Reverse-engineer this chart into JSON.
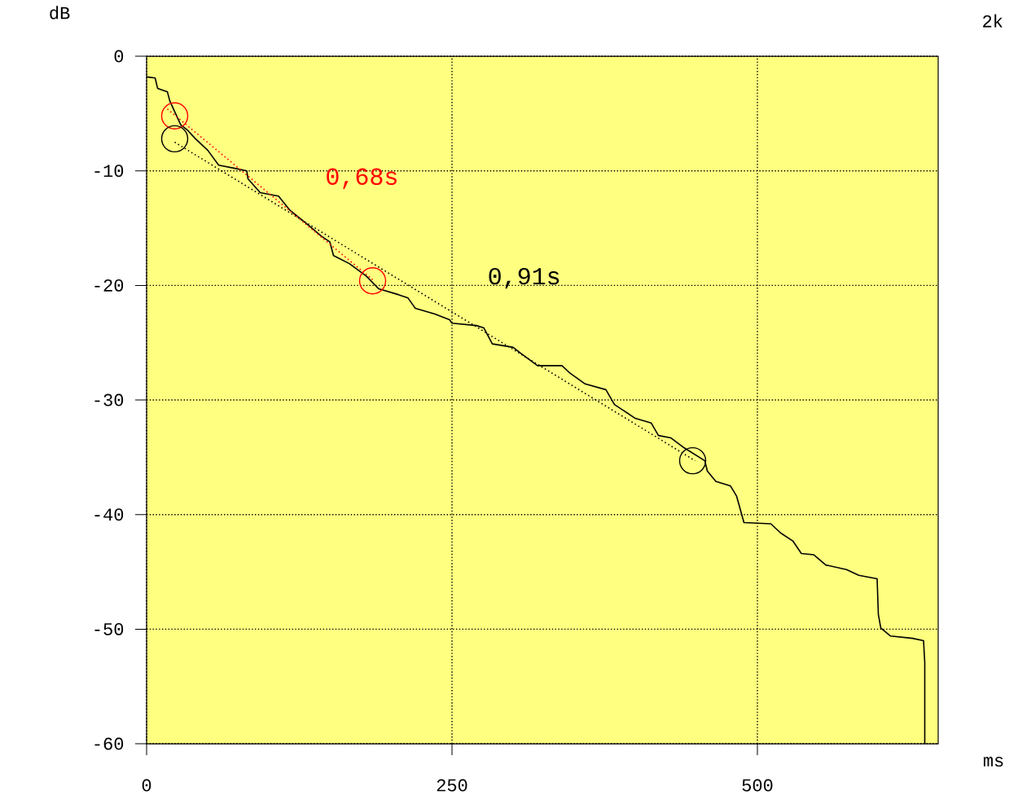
{
  "chart_data": {
    "type": "line",
    "xlabel": "ms",
    "ylabel": "dB",
    "xlim": [
      0,
      648
    ],
    "ylim": [
      -60,
      0
    ],
    "xticks": [
      0,
      250,
      500
    ],
    "yticks": [
      0,
      -10,
      -20,
      -30,
      -40,
      -50,
      -60
    ],
    "grid": true,
    "series": [
      {
        "color": "#000000",
        "line_style": "solid",
        "marker": "none",
        "x": [
          0,
          7,
          9,
          17,
          19,
          25,
          28,
          33,
          40,
          50,
          59,
          73,
          82,
          83,
          93,
          108,
          117,
          133,
          143,
          150,
          153,
          166,
          180,
          190,
          206,
          214,
          220,
          236,
          248,
          250,
          270,
          276,
          283,
          300,
          306,
          320,
          340,
          346,
          359,
          376,
          383,
          393,
          400,
          413,
          419,
          429,
          439,
          457,
          459,
          466,
          478,
          483,
          489,
          511,
          519,
          529,
          536,
          546,
          556,
          573,
          583,
          598,
          599,
          601,
          609,
          627,
          636,
          637,
          637
        ],
        "values": [
          -1.8,
          -1.9,
          -2.8,
          -3.1,
          -3.9,
          -5.3,
          -6.0,
          -6.4,
          -7.2,
          -8.2,
          -9.5,
          -9.8,
          -10.0,
          -10.7,
          -11.9,
          -12.2,
          -13.4,
          -14.8,
          -15.7,
          -16.2,
          -17.4,
          -18.1,
          -19.2,
          -20.3,
          -20.8,
          -21.1,
          -22.0,
          -22.5,
          -23.0,
          -23.3,
          -23.5,
          -23.7,
          -25.1,
          -25.4,
          -25.9,
          -27.0,
          -27.0,
          -27.6,
          -28.6,
          -29.1,
          -30.4,
          -31.1,
          -31.6,
          -32.0,
          -33.1,
          -33.3,
          -34.1,
          -35.3,
          -36.2,
          -37.1,
          -37.5,
          -38.4,
          -40.7,
          -40.8,
          -41.6,
          -42.3,
          -43.4,
          -43.5,
          -44.4,
          -44.8,
          -45.3,
          -45.6,
          -48.7,
          -49.9,
          -50.6,
          -50.8,
          -51.0,
          -52.9,
          -60
        ]
      },
      {
        "type": "line",
        "color": "#ff0000",
        "line_style": "dotted",
        "marker": "none",
        "x": [
          17,
          185
        ],
        "values": [
          -4.6,
          -19.5
        ]
      },
      {
        "type": "line",
        "color": "#000000",
        "line_style": "dotted",
        "marker": "none",
        "x": [
          23,
          449
        ],
        "values": [
          -7.5,
          -35.3
        ]
      },
      {
        "type": "scatter",
        "color": "#ff0000",
        "marker": "circle",
        "x": [
          23,
          185
        ],
        "values": [
          -5.2,
          -19.6
        ]
      },
      {
        "type": "scatter",
        "color": "#000000",
        "marker": "circle",
        "x": [
          23,
          447
        ],
        "values": [
          -7.2,
          -35.3
        ]
      }
    ],
    "annotations": [
      "0,68s",
      "0,91s",
      "2k"
    ]
  }
}
